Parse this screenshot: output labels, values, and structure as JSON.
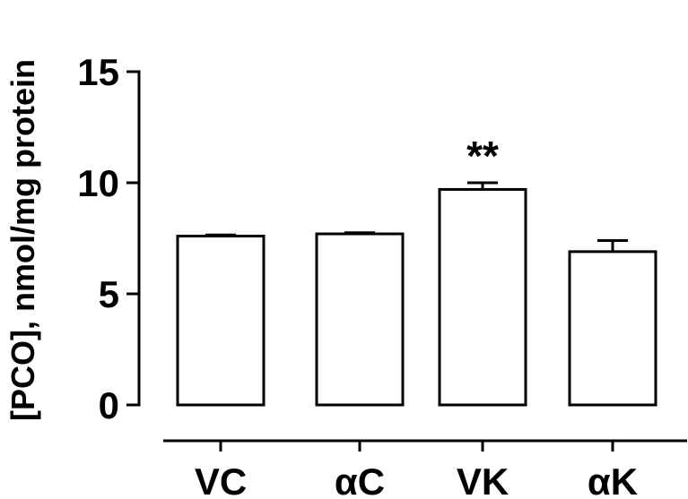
{
  "chart_data": {
    "type": "bar",
    "title": "",
    "xlabel": "",
    "ylabel": "[PCO], nmol/mg protein",
    "ylim": [
      0,
      15
    ],
    "yticks": [
      0,
      5,
      10,
      15
    ],
    "grid": false,
    "categories": [
      "VC",
      "αC",
      "VK",
      "αK"
    ],
    "values": [
      7.6,
      7.7,
      9.7,
      6.9
    ],
    "errors": [
      0.05,
      0.05,
      0.3,
      0.5
    ],
    "annotations": [
      {
        "category": "VK",
        "text": "**"
      }
    ],
    "bar_fill": "#ffffff",
    "bar_stroke": "#000000"
  }
}
